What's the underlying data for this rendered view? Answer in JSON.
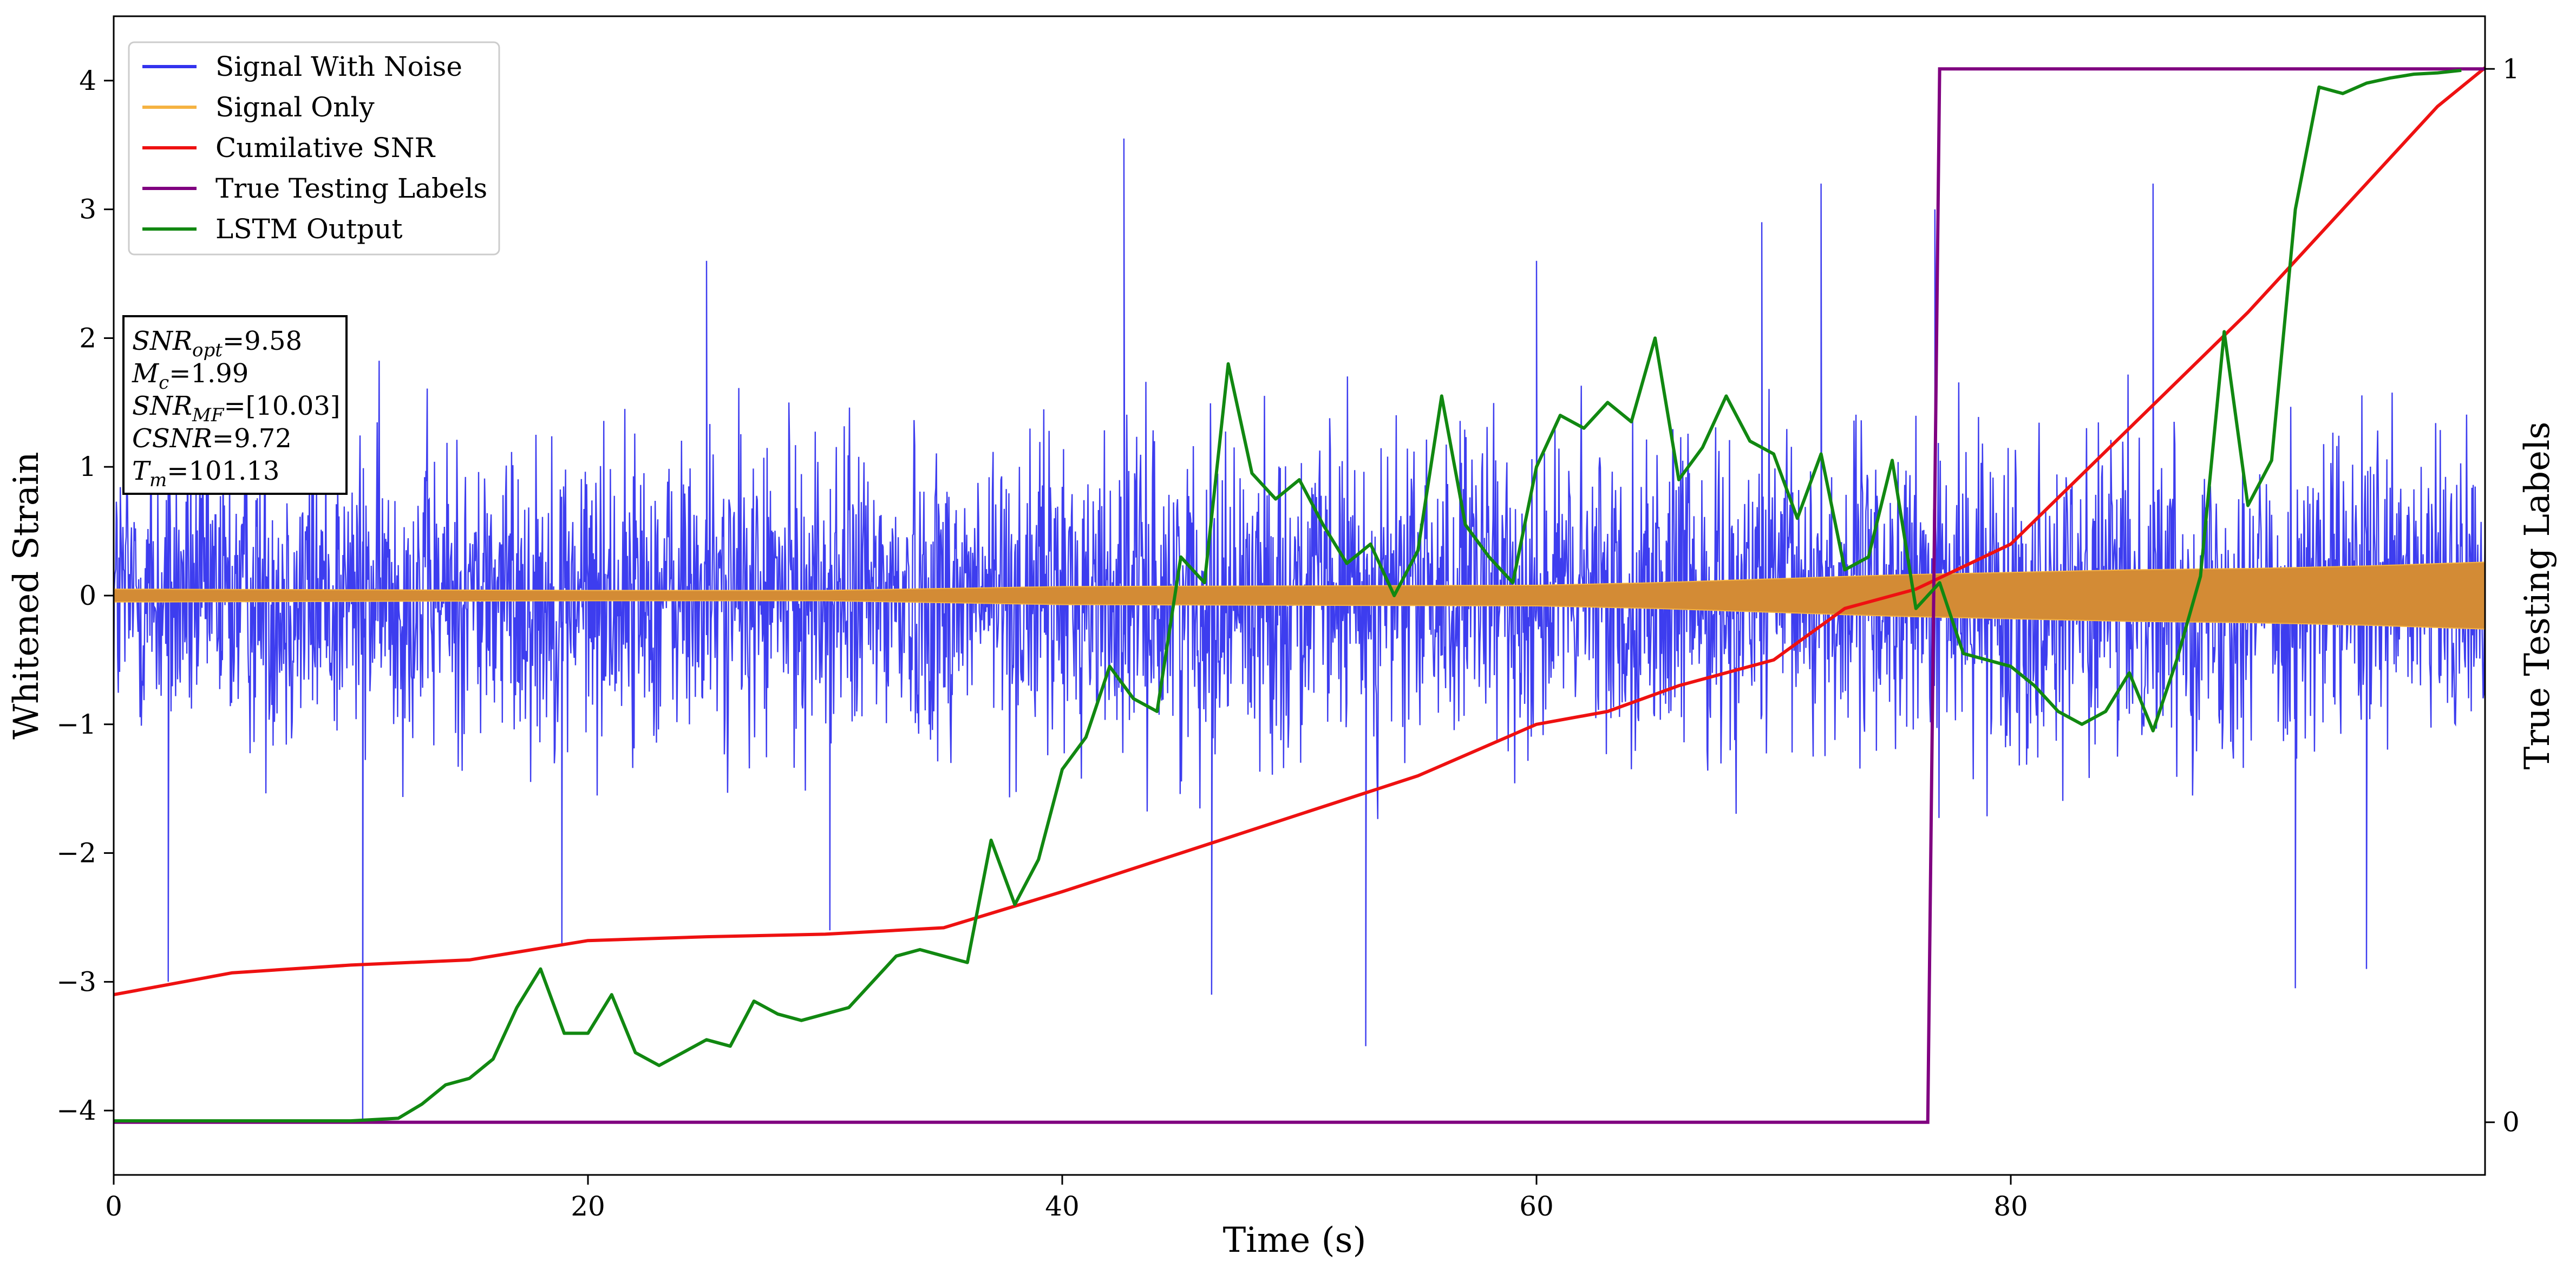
{
  "chart_data": {
    "type": "line",
    "xlabel": "Time (s)",
    "ylabel": "Whitened Strain",
    "ylabel_right": "True Testing Labels",
    "xlim": [
      0,
      100
    ],
    "ylim": [
      -4.5,
      4.5
    ],
    "ylim_right": [
      -0.05,
      1.05
    ],
    "x_ticks": [
      0,
      20,
      40,
      60,
      80
    ],
    "y_ticks": [
      -4,
      -3,
      -2,
      -1,
      0,
      1,
      2,
      3,
      4
    ],
    "y_ticks_right": [
      0,
      1
    ],
    "grid": false,
    "legend_position": "top-left",
    "legend": [
      {
        "label": "Signal With Noise",
        "color": "#3333ee"
      },
      {
        "label": "Signal Only",
        "color": "#f5b342"
      },
      {
        "label": "Cumilative SNR",
        "color": "#ee1111"
      },
      {
        "label": "True Testing Labels",
        "color": "#800080"
      },
      {
        "label": "LSTM Output",
        "color": "#118811"
      }
    ],
    "annotation": [
      {
        "base": "SNR",
        "sub": "opt",
        "value": "=9.58"
      },
      {
        "base": "M",
        "sub": "c",
        "value": "=1.99"
      },
      {
        "base": "SNR",
        "sub": "MF",
        "value": "=[10.03]"
      },
      {
        "base": "CSNR",
        "sub": "",
        "value": "=9.72"
      },
      {
        "base": "T",
        "sub": "m",
        "value": "=101.13"
      }
    ],
    "series": [
      {
        "name": "Signal With Noise",
        "color": "#3333ee",
        "noise_band": {
          "typical": [
            -1.7,
            1.7
          ],
          "min": -4.1,
          "max": 3.6
        },
        "spikes": [
          {
            "x": 2.3,
            "y": -3.0
          },
          {
            "x": 10.5,
            "y": -4.1
          },
          {
            "x": 18.9,
            "y": -2.7
          },
          {
            "x": 25.0,
            "y": 2.6
          },
          {
            "x": 30.2,
            "y": -2.6
          },
          {
            "x": 42.6,
            "y": 3.55
          },
          {
            "x": 46.3,
            "y": -3.1
          },
          {
            "x": 52.8,
            "y": -3.5
          },
          {
            "x": 60.0,
            "y": 2.6
          },
          {
            "x": 69.5,
            "y": 2.9
          },
          {
            "x": 72.0,
            "y": 3.2
          },
          {
            "x": 76.8,
            "y": 3.0
          },
          {
            "x": 86.0,
            "y": 3.2
          },
          {
            "x": 92.0,
            "y": -3.05
          },
          {
            "x": 95.0,
            "y": -2.9
          }
        ]
      },
      {
        "name": "Signal Only",
        "color": "#f5b342",
        "envelope": {
          "x": [
            0,
            20,
            30,
            40,
            60,
            65,
            70,
            75,
            80,
            85,
            90,
            95,
            100
          ],
          "amp": [
            0.05,
            0.04,
            0.04,
            0.07,
            0.08,
            0.1,
            0.13,
            0.16,
            0.18,
            0.2,
            0.21,
            0.23,
            0.26
          ]
        }
      },
      {
        "name": "Cumilative SNR",
        "color": "#ee1111",
        "x": [
          0,
          5,
          10,
          15,
          20,
          25,
          30,
          35,
          40,
          45,
          50,
          55,
          60,
          63,
          66,
          70,
          73,
          76,
          80,
          85,
          90,
          95,
          98,
          100
        ],
        "y": [
          -3.1,
          -2.93,
          -2.87,
          -2.83,
          -2.68,
          -2.65,
          -2.63,
          -2.58,
          -2.3,
          -2.0,
          -1.7,
          -1.4,
          -1.0,
          -0.9,
          -0.7,
          -0.5,
          -0.1,
          0.05,
          0.4,
          1.3,
          2.2,
          3.2,
          3.8,
          4.1
        ]
      },
      {
        "name": "True Testing Labels",
        "color": "#800080",
        "axis": "right",
        "x": [
          0,
          76.5,
          77.0,
          100
        ],
        "y": [
          0,
          0,
          1,
          1
        ]
      },
      {
        "name": "LSTM Output",
        "color": "#118811",
        "x": [
          0,
          10,
          12,
          13,
          14,
          15,
          16,
          17,
          18,
          19,
          20,
          21,
          22,
          23,
          24,
          25,
          26,
          27,
          28,
          29,
          30,
          31,
          32,
          33,
          34,
          35,
          36,
          37,
          38,
          39,
          40,
          41,
          42,
          43,
          44,
          45,
          46,
          47,
          48,
          49,
          50,
          51,
          52,
          53,
          54,
          55,
          56,
          57,
          58,
          59,
          60,
          61,
          62,
          63,
          64,
          65,
          66,
          67,
          68,
          69,
          70,
          71,
          72,
          73,
          74,
          75,
          76,
          77,
          78,
          79,
          80,
          81,
          82,
          83,
          84,
          85,
          86,
          87,
          88,
          89,
          90,
          91,
          92,
          93,
          94,
          95,
          96,
          97,
          98,
          99
        ],
        "y": [
          -4.08,
          -4.08,
          -4.06,
          -3.95,
          -3.8,
          -3.75,
          -3.6,
          -3.2,
          -2.9,
          -3.4,
          -3.4,
          -3.1,
          -3.55,
          -3.65,
          -3.55,
          -3.45,
          -3.5,
          -3.15,
          -3.25,
          -3.3,
          -3.25,
          -3.2,
          -3.0,
          -2.8,
          -2.75,
          -2.8,
          -2.85,
          -1.9,
          -2.4,
          -2.05,
          -1.35,
          -1.1,
          -0.55,
          -0.8,
          -0.9,
          0.3,
          0.1,
          1.8,
          0.95,
          0.75,
          0.9,
          0.55,
          0.25,
          0.4,
          0.0,
          0.35,
          1.55,
          0.55,
          0.3,
          0.1,
          1.0,
          1.4,
          1.3,
          1.5,
          1.35,
          2.0,
          0.9,
          1.15,
          1.55,
          1.2,
          1.1,
          0.6,
          1.1,
          0.2,
          0.3,
          1.05,
          -0.1,
          0.1,
          -0.45,
          -0.5,
          -0.55,
          -0.7,
          -0.9,
          -1.0,
          -0.9,
          -0.6,
          -1.05,
          -0.5,
          0.15,
          2.05,
          0.7,
          1.05,
          3.0,
          3.95,
          3.9,
          3.98,
          4.02,
          4.05,
          4.06,
          4.08
        ]
      }
    ]
  }
}
